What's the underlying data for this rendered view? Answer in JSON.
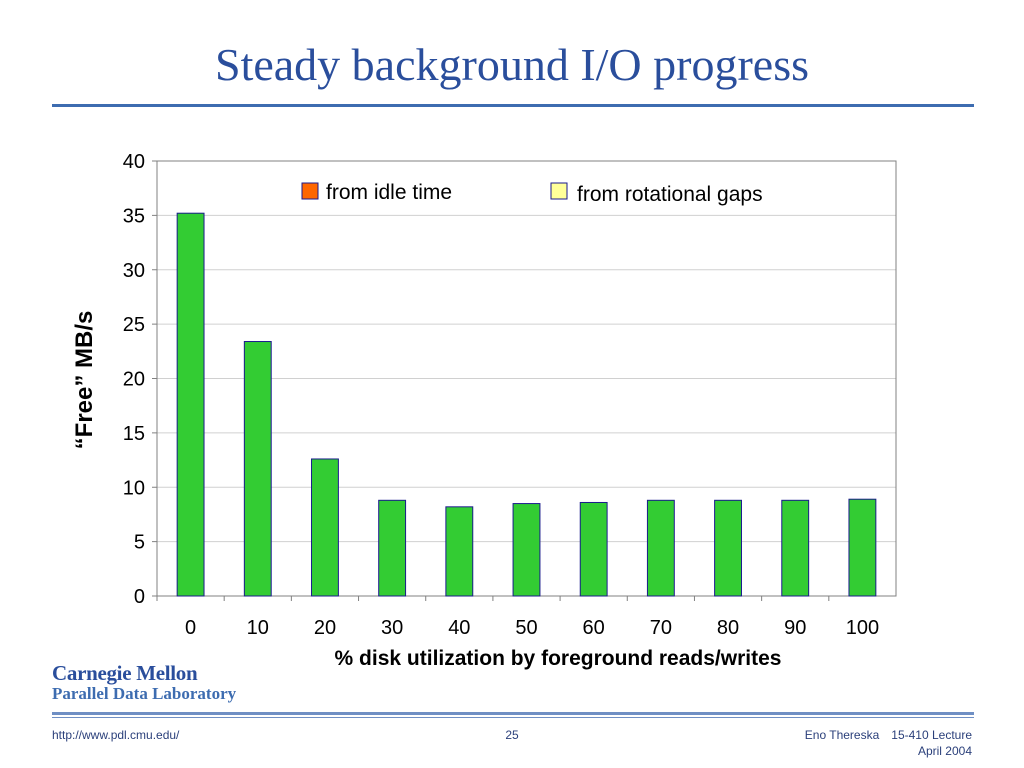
{
  "slide": {
    "title": "Steady background I/O progress",
    "logo_line1": "Carnegie Mellon",
    "logo_line2": "Parallel Data Laboratory",
    "footer_url": "http://www.pdl.cmu.edu/",
    "page_number": "25",
    "author": "Eno Thereska",
    "course": "15-410 Lecture",
    "date": "April 2004"
  },
  "colors": {
    "title": "#2a4e9c",
    "bar_fill": "#33cc33",
    "bar_stroke": "#1a1a8c",
    "legend_idle": "#ff6600",
    "legend_gaps": "#ffff99",
    "grid": "#d0d0d0"
  },
  "chart_data": {
    "type": "bar",
    "categories": [
      "0",
      "10",
      "20",
      "30",
      "40",
      "50",
      "60",
      "70",
      "80",
      "90",
      "100"
    ],
    "series": [
      {
        "name": "from idle time",
        "values": [
          0,
          0,
          0,
          0,
          0,
          0,
          0,
          0,
          0,
          0,
          0
        ]
      },
      {
        "name": "from rotational gaps",
        "values": [
          35.2,
          23.4,
          12.6,
          8.8,
          8.2,
          8.5,
          8.6,
          8.8,
          8.8,
          8.8,
          8.9
        ]
      }
    ],
    "stacked": true,
    "title": "",
    "xlabel": "% disk utilization by foreground reads/writes",
    "ylabel": "“Free” MB/s",
    "ylim": [
      0,
      40
    ],
    "yticks": [
      0,
      5,
      10,
      15,
      20,
      25,
      30,
      35,
      40
    ],
    "grid": true,
    "legend_position": "top"
  }
}
